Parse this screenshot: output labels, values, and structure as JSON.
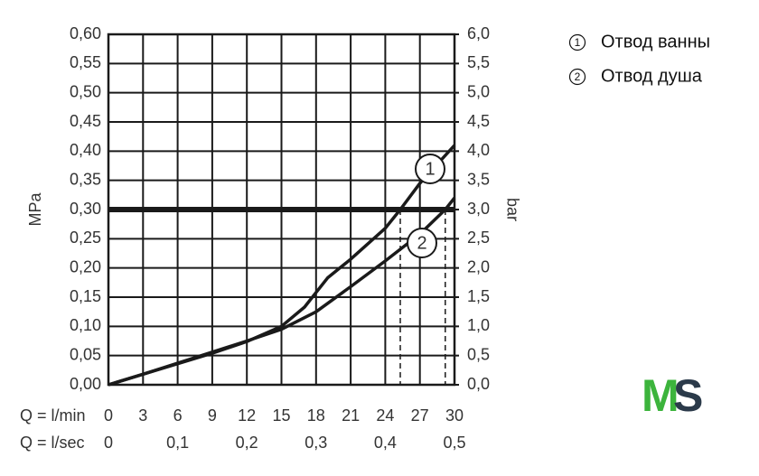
{
  "chart_data": {
    "type": "line",
    "y_label": "MPa",
    "y2_label": "bar",
    "x_label": "Q = l/min",
    "x2_label": "Q = l/sec",
    "xlim": [
      0,
      30
    ],
    "xticks": [
      0,
      3,
      6,
      9,
      12,
      15,
      18,
      21,
      24,
      27,
      30
    ],
    "x2lim": [
      0,
      0.5
    ],
    "x2ticks": [
      0,
      {
        "value": 0.1,
        "label": "0,1"
      },
      {
        "value": 0.2,
        "label": "0,2"
      },
      {
        "value": 0.3,
        "label": "0,3"
      },
      {
        "value": 0.4,
        "label": "0,4"
      },
      {
        "value": 0.5,
        "label": "0,5"
      }
    ],
    "ylim": [
      0,
      0.6
    ],
    "yticks": [
      {
        "value": 0,
        "label": "0,00"
      },
      {
        "value": 0.05,
        "label": "0,05"
      },
      {
        "value": 0.1,
        "label": "0,10"
      },
      {
        "value": 0.15,
        "label": "0,15"
      },
      {
        "value": 0.2,
        "label": "0,20"
      },
      {
        "value": 0.25,
        "label": "0,25"
      },
      {
        "value": 0.3,
        "label": "0,30"
      },
      {
        "value": 0.35,
        "label": "0,35"
      },
      {
        "value": 0.4,
        "label": "0,40"
      },
      {
        "value": 0.45,
        "label": "0,45"
      },
      {
        "value": 0.5,
        "label": "0,50"
      },
      {
        "value": 0.55,
        "label": "0,55"
      },
      {
        "value": 0.6,
        "label": "0,60"
      }
    ],
    "y2lim": [
      0,
      6
    ],
    "y2ticks": [
      {
        "value": 0,
        "label": "0,0"
      },
      {
        "value": 0.5,
        "label": "0,5"
      },
      {
        "value": 1,
        "label": "1,0"
      },
      {
        "value": 1.5,
        "label": "1,5"
      },
      {
        "value": 2,
        "label": "2,0"
      },
      {
        "value": 2.5,
        "label": "2,5"
      },
      {
        "value": 3,
        "label": "3,0"
      },
      {
        "value": 3.5,
        "label": "3,5"
      },
      {
        "value": 4,
        "label": "4,0"
      },
      {
        "value": 4.5,
        "label": "4,5"
      },
      {
        "value": 5,
        "label": "5,0"
      },
      {
        "value": 5.5,
        "label": "5,5"
      },
      {
        "value": 6,
        "label": "6,0"
      }
    ],
    "grid": true,
    "hline": 0.3,
    "vlines": [
      25.3,
      29.2
    ],
    "series": [
      {
        "name": "Отвод ванны",
        "marker": "1",
        "color": "#1a1a1a",
        "x": [
          0,
          3,
          6,
          9,
          12,
          15,
          17,
          18,
          19,
          21,
          24,
          25.3,
          27,
          30
        ],
        "values": [
          0,
          0.018,
          0.036,
          0.054,
          0.074,
          0.1,
          0.133,
          0.158,
          0.183,
          0.215,
          0.268,
          0.3,
          0.345,
          0.41
        ]
      },
      {
        "name": "Отвод душа",
        "marker": "2",
        "color": "#1a1a1a",
        "x": [
          0,
          3,
          6,
          9,
          12,
          15,
          18,
          21,
          24,
          27,
          29.2,
          30
        ],
        "values": [
          0,
          0.018,
          0.037,
          0.056,
          0.075,
          0.095,
          0.125,
          0.168,
          0.212,
          0.258,
          0.3,
          0.32
        ]
      }
    ]
  },
  "logo": [
    "M",
    "S"
  ]
}
